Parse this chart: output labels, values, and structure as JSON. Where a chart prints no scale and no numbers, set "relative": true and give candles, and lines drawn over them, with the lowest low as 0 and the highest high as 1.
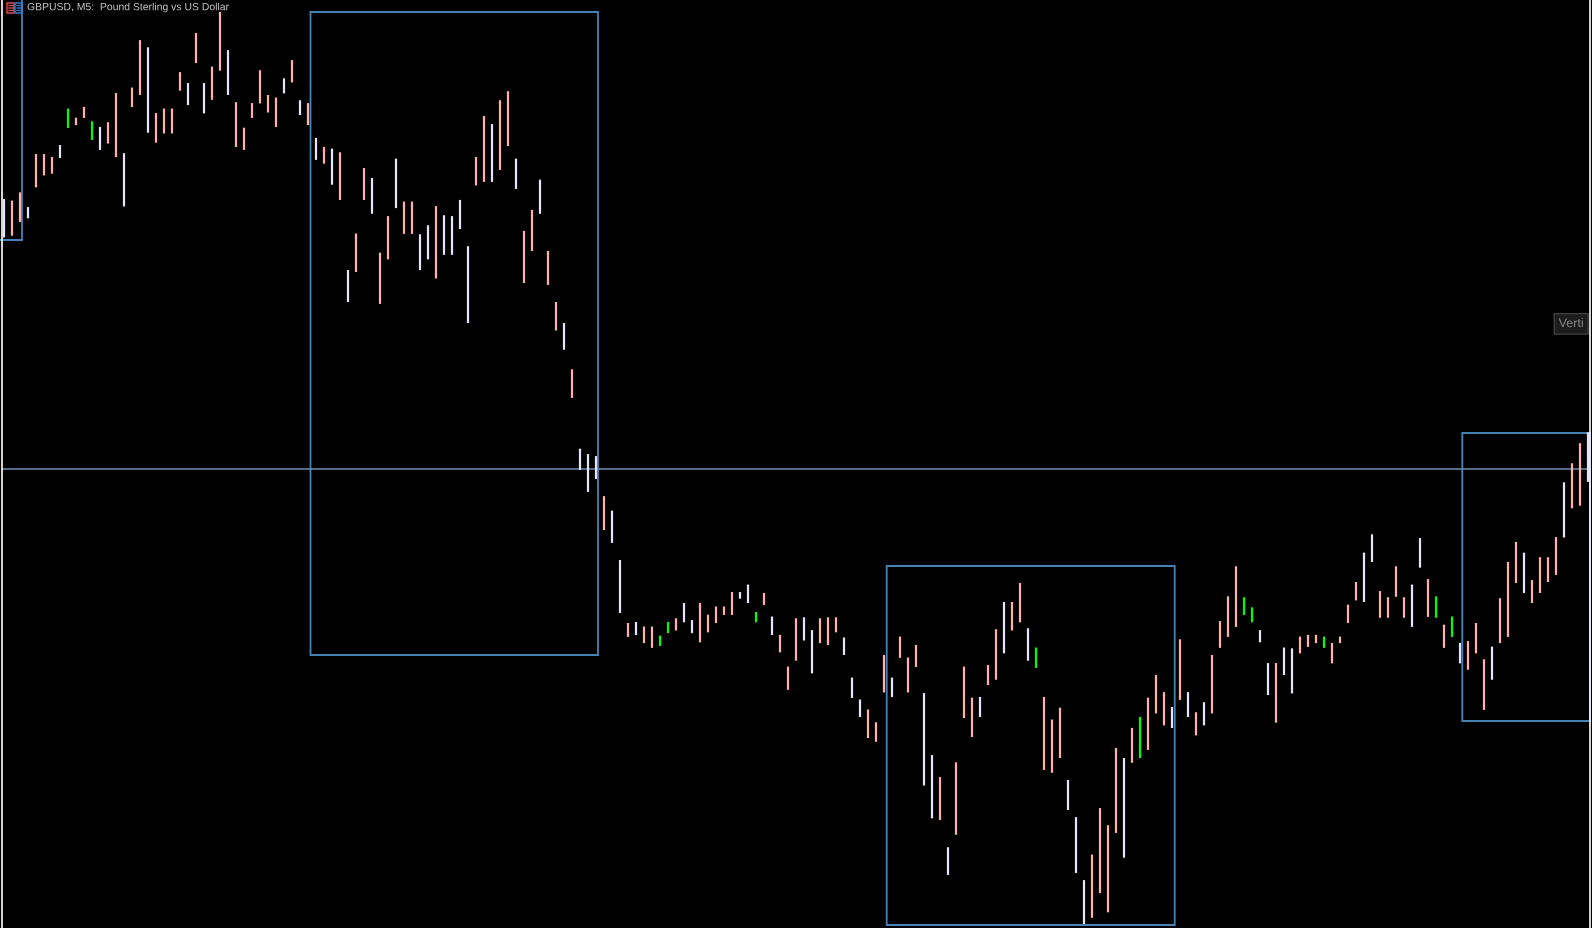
{
  "chart_data": {
    "type": "candlestick",
    "title": "GBPUSD, M5:  Pound Sterling vs US Dollar",
    "relative": true,
    "categories": [
      null,
      null,
      null,
      null,
      null,
      null,
      null,
      null,
      null,
      null,
      null,
      null,
      null,
      null,
      null,
      null,
      null,
      null,
      null,
      null,
      null,
      null,
      null,
      null,
      null,
      null,
      null,
      null,
      null,
      null,
      null,
      null,
      null,
      null,
      null,
      null,
      null,
      null,
      null,
      null,
      null,
      null,
      null,
      null,
      null,
      null,
      null,
      null,
      null,
      null,
      null,
      null,
      null,
      null,
      null,
      null,
      null,
      null,
      null,
      null,
      null,
      null,
      null,
      null,
      null,
      null,
      null,
      null,
      null,
      null,
      null,
      null,
      null,
      null,
      null,
      null,
      null,
      null,
      null,
      null,
      null,
      null,
      null,
      null,
      null,
      null,
      null,
      null,
      null,
      null,
      null,
      null,
      null,
      null,
      null,
      null,
      null,
      null,
      null,
      null,
      null,
      null,
      null,
      null,
      null,
      null,
      null,
      null,
      null,
      null,
      null,
      null,
      null,
      null,
      null,
      null,
      null,
      null,
      null,
      null,
      null,
      null,
      null,
      null,
      null,
      null,
      null,
      null,
      null,
      null,
      null,
      null,
      null,
      null,
      null,
      null,
      null,
      null,
      null,
      null,
      null,
      null,
      null,
      null,
      null,
      null,
      null,
      null,
      null,
      null,
      null,
      null,
      null,
      null,
      null,
      null,
      null,
      null,
      null,
      null,
      null,
      null,
      null,
      null,
      null,
      null,
      null,
      null,
      null,
      null,
      null,
      null,
      null,
      null,
      null,
      null,
      null,
      null,
      null,
      null,
      null,
      null,
      null,
      null,
      null,
      null,
      null,
      null,
      null,
      null,
      null,
      null,
      null,
      null,
      null,
      null,
      null,
      null,
      null
    ],
    "ohlc": [
      [
        0.795,
        0.795,
        0.753,
        0.753
      ],
      [
        0.755,
        0.793,
        0.755,
        0.793
      ],
      [
        0.77,
        0.802,
        0.77,
        0.802
      ],
      [
        0.786,
        0.786,
        0.774,
        0.774
      ],
      [
        0.808,
        0.844,
        0.808,
        0.844
      ],
      [
        0.821,
        0.844,
        0.821,
        0.844
      ],
      [
        0.823,
        0.841,
        0.823,
        0.841
      ],
      [
        0.854,
        0.854,
        0.84,
        0.84
      ],
      [
        0.873,
        0.894,
        0.873,
        0.894
      ],
      [
        0.876,
        0.884,
        0.876,
        0.884
      ],
      [
        0.884,
        0.896,
        0.884,
        0.896
      ],
      [
        0.86,
        0.88,
        0.86,
        0.88
      ],
      [
        0.874,
        0.874,
        0.849,
        0.849
      ],
      [
        0.856,
        0.879,
        0.856,
        0.879
      ],
      [
        0.841,
        0.911,
        0.841,
        0.911
      ],
      [
        0.845,
        0.845,
        0.787,
        0.787
      ],
      [
        0.896,
        0.917,
        0.896,
        0.917
      ],
      [
        0.909,
        0.969,
        0.909,
        0.969
      ],
      [
        0.961,
        0.961,
        0.868,
        0.868
      ],
      [
        0.857,
        0.889,
        0.857,
        0.889
      ],
      [
        0.867,
        0.894,
        0.867,
        0.894
      ],
      [
        0.867,
        0.894,
        0.867,
        0.894
      ],
      [
        0.914,
        0.934,
        0.914,
        0.934
      ],
      [
        0.922,
        0.922,
        0.898,
        0.898
      ],
      [
        0.944,
        0.977,
        0.944,
        0.977
      ],
      [
        0.922,
        0.922,
        0.889,
        0.889
      ],
      [
        0.904,
        0.94,
        0.904,
        0.94
      ],
      [
        0.936,
        1,
        0.936,
        1
      ],
      [
        0.958,
        0.958,
        0.909,
        0.909
      ],
      [
        0.852,
        0.901,
        0.852,
        0.901
      ],
      [
        0.849,
        0.873,
        0.849,
        0.873
      ],
      [
        0.884,
        0.9,
        0.884,
        0.9
      ],
      [
        0.9,
        0.936,
        0.9,
        0.936
      ],
      [
        0.89,
        0.909,
        0.89,
        0.909
      ],
      [
        0.874,
        0.906,
        0.874,
        0.906
      ],
      [
        0.927,
        0.927,
        0.911,
        0.911
      ],
      [
        0.923,
        0.947,
        0.923,
        0.947
      ],
      [
        0.903,
        0.903,
        0.887,
        0.887
      ],
      [
        0.876,
        0.9,
        0.876,
        0.9
      ],
      [
        0.862,
        0.862,
        0.838,
        0.838
      ],
      [
        0.834,
        0.852,
        0.834,
        0.852
      ],
      [
        0.85,
        0.85,
        0.811,
        0.811
      ],
      [
        0.794,
        0.846,
        0.794,
        0.846
      ],
      [
        0.717,
        0.717,
        0.682,
        0.682
      ],
      [
        0.715,
        0.757,
        0.715,
        0.757
      ],
      [
        0.794,
        0.829,
        0.794,
        0.829
      ],
      [
        0.818,
        0.818,
        0.779,
        0.779
      ],
      [
        0.68,
        0.736,
        0.68,
        0.736
      ],
      [
        0.729,
        0.776,
        0.729,
        0.776
      ],
      [
        0.839,
        0.839,
        0.785,
        0.785
      ],
      [
        0.757,
        0.792,
        0.757,
        0.792
      ],
      [
        0.757,
        0.792,
        0.757,
        0.792
      ],
      [
        0.756,
        0.756,
        0.717,
        0.717
      ],
      [
        0.766,
        0.766,
        0.729,
        0.729
      ],
      [
        0.708,
        0.787,
        0.708,
        0.787
      ],
      [
        0.777,
        0.777,
        0.734,
        0.734
      ],
      [
        0.776,
        0.776,
        0.734,
        0.734
      ],
      [
        0.794,
        0.794,
        0.762,
        0.762
      ],
      [
        0.743,
        0.743,
        0.659,
        0.659
      ],
      [
        0.81,
        0.841,
        0.81,
        0.841
      ],
      [
        0.814,
        0.886,
        0.814,
        0.886
      ],
      [
        0.877,
        0.877,
        0.814,
        0.814
      ],
      [
        0.827,
        0.903,
        0.827,
        0.903
      ],
      [
        0.853,
        0.913,
        0.853,
        0.913
      ],
      [
        0.839,
        0.839,
        0.806,
        0.806
      ],
      [
        0.703,
        0.76,
        0.703,
        0.76
      ],
      [
        0.738,
        0.783,
        0.738,
        0.783
      ],
      [
        0.816,
        0.816,
        0.779,
        0.779
      ],
      [
        0.701,
        0.738,
        0.701,
        0.738
      ],
      [
        0.651,
        0.682,
        0.651,
        0.682
      ],
      [
        0.659,
        0.659,
        0.63,
        0.63
      ],
      [
        0.577,
        0.608,
        0.577,
        0.608
      ],
      [
        0.521,
        0.521,
        0.498,
        0.498
      ],
      [
        0.515,
        0.515,
        0.474,
        0.474
      ],
      [
        0.513,
        0.513,
        0.488,
        0.488
      ],
      [
        0.432,
        0.469,
        0.432,
        0.469
      ],
      [
        0.453,
        0.453,
        0.418,
        0.418
      ],
      [
        0.399,
        0.399,
        0.341,
        0.341
      ],
      [
        0.315,
        0.33,
        0.315,
        0.33
      ],
      [
        0.331,
        0.331,
        0.317,
        0.317
      ],
      [
        0.308,
        0.326,
        0.308,
        0.326
      ],
      [
        0.303,
        0.326,
        0.303,
        0.326
      ],
      [
        0.305,
        0.316,
        0.305,
        0.316
      ],
      [
        0.319,
        0.331,
        0.319,
        0.331
      ],
      [
        0.322,
        0.335,
        0.322,
        0.335
      ],
      [
        0.352,
        0.352,
        0.331,
        0.331
      ],
      [
        0.333,
        0.333,
        0.319,
        0.319
      ],
      [
        0.309,
        0.352,
        0.309,
        0.352
      ],
      [
        0.32,
        0.339,
        0.32,
        0.339
      ],
      [
        0.33,
        0.348,
        0.33,
        0.348
      ],
      [
        0.339,
        0.348,
        0.339,
        0.348
      ],
      [
        0.339,
        0.364,
        0.339,
        0.364
      ],
      [
        0.364,
        0.364,
        0.357,
        0.357
      ],
      [
        0.372,
        0.372,
        0.352,
        0.352
      ],
      [
        0.331,
        0.342,
        0.331,
        0.342
      ],
      [
        0.35,
        0.363,
        0.35,
        0.363
      ],
      [
        0.337,
        0.337,
        0.317,
        0.317
      ],
      [
        0.298,
        0.317,
        0.298,
        0.317
      ],
      [
        0.257,
        0.282,
        0.257,
        0.282
      ],
      [
        0.289,
        0.335,
        0.289,
        0.335
      ],
      [
        0.336,
        0.336,
        0.311,
        0.311
      ],
      [
        0.322,
        0.322,
        0.275,
        0.275
      ],
      [
        0.308,
        0.335,
        0.308,
        0.335
      ],
      [
        0.306,
        0.336,
        0.306,
        0.336
      ],
      [
        0.32,
        0.336,
        0.32,
        0.336
      ],
      [
        0.314,
        0.314,
        0.295,
        0.295
      ],
      [
        0.27,
        0.27,
        0.248,
        0.248
      ],
      [
        0.246,
        0.246,
        0.227,
        0.227
      ],
      [
        0.204,
        0.235,
        0.204,
        0.235
      ],
      [
        0.2,
        0.221,
        0.2,
        0.221
      ],
      [
        0.254,
        0.295,
        0.254,
        0.295
      ],
      [
        0.27,
        0.27,
        0.249,
        0.249
      ],
      [
        0.292,
        0.315,
        0.292,
        0.315
      ],
      [
        0.254,
        0.292,
        0.254,
        0.292
      ],
      [
        0.282,
        0.306,
        0.282,
        0.306
      ],
      [
        0.253,
        0.253,
        0.152,
        0.152
      ],
      [
        0.185,
        0.185,
        0.116,
        0.116
      ],
      [
        0.114,
        0.161,
        0.114,
        0.161
      ],
      [
        0.084,
        0.084,
        0.054,
        0.054
      ],
      [
        0.098,
        0.177,
        0.098,
        0.177
      ],
      [
        0.226,
        0.282,
        0.226,
        0.282
      ],
      [
        0.205,
        0.248,
        0.205,
        0.248
      ],
      [
        0.249,
        0.249,
        0.227,
        0.227
      ],
      [
        0.262,
        0.284,
        0.262,
        0.284
      ],
      [
        0.268,
        0.323,
        0.268,
        0.323
      ],
      [
        0.353,
        0.353,
        0.297,
        0.297
      ],
      [
        0.322,
        0.353,
        0.322,
        0.353
      ],
      [
        0.331,
        0.374,
        0.331,
        0.374
      ],
      [
        0.324,
        0.324,
        0.289,
        0.289
      ],
      [
        0.281,
        0.303,
        0.281,
        0.303
      ],
      [
        0.169,
        0.249,
        0.169,
        0.249
      ],
      [
        0.166,
        0.224,
        0.166,
        0.224
      ],
      [
        0.182,
        0.237,
        0.182,
        0.237
      ],
      [
        0.158,
        0.158,
        0.125,
        0.125
      ],
      [
        0.117,
        0.117,
        0.056,
        0.056
      ],
      [
        0.048,
        0.048,
        0,
        0
      ],
      [
        0.007,
        0.076,
        0.007,
        0.076
      ],
      [
        0.034,
        0.127,
        0.034,
        0.127
      ],
      [
        0.013,
        0.108,
        0.013,
        0.108
      ],
      [
        0.1,
        0.193,
        0.1,
        0.193
      ],
      [
        0.182,
        0.182,
        0.073,
        0.073
      ],
      [
        0.177,
        0.215,
        0.177,
        0.215
      ],
      [
        0.182,
        0.227,
        0.182,
        0.227
      ],
      [
        0.191,
        0.248,
        0.191,
        0.248
      ],
      [
        0.231,
        0.273,
        0.231,
        0.273
      ],
      [
        0.218,
        0.254,
        0.218,
        0.254
      ],
      [
        0.238,
        0.238,
        0.215,
        0.215
      ],
      [
        0.246,
        0.312,
        0.246,
        0.312
      ],
      [
        0.254,
        0.254,
        0.227,
        0.227
      ],
      [
        0.207,
        0.232,
        0.207,
        0.232
      ],
      [
        0.243,
        0.243,
        0.218,
        0.218
      ],
      [
        0.231,
        0.295,
        0.231,
        0.295
      ],
      [
        0.303,
        0.332,
        0.303,
        0.332
      ],
      [
        0.315,
        0.359,
        0.315,
        0.359
      ],
      [
        0.326,
        0.392,
        0.326,
        0.392
      ],
      [
        0.339,
        0.358,
        0.339,
        0.358
      ],
      [
        0.331,
        0.347,
        0.331,
        0.347
      ],
      [
        0.322,
        0.322,
        0.309,
        0.309
      ],
      [
        0.286,
        0.286,
        0.251,
        0.251
      ],
      [
        0.221,
        0.286,
        0.221,
        0.286
      ],
      [
        0.303,
        0.303,
        0.273,
        0.273
      ],
      [
        0.302,
        0.302,
        0.253,
        0.253
      ],
      [
        0.297,
        0.315,
        0.297,
        0.315
      ],
      [
        0.304,
        0.317,
        0.304,
        0.317
      ],
      [
        0.308,
        0.317,
        0.308,
        0.317
      ],
      [
        0.303,
        0.315,
        0.303,
        0.315
      ],
      [
        0.286,
        0.308,
        0.286,
        0.308
      ],
      [
        0.308,
        0.315,
        0.308,
        0.315
      ],
      [
        0.33,
        0.35,
        0.33,
        0.35
      ],
      [
        0.355,
        0.375,
        0.355,
        0.375
      ],
      [
        0.407,
        0.407,
        0.353,
        0.353
      ],
      [
        0.427,
        0.427,
        0.397,
        0.397
      ],
      [
        0.336,
        0.365,
        0.336,
        0.365
      ],
      [
        0.336,
        0.358,
        0.336,
        0.358
      ],
      [
        0.359,
        0.392,
        0.359,
        0.392
      ],
      [
        0.336,
        0.358,
        0.336,
        0.358
      ],
      [
        0.372,
        0.372,
        0.326,
        0.326
      ],
      [
        0.423,
        0.423,
        0.391,
        0.391
      ],
      [
        0.337,
        0.378,
        0.337,
        0.378
      ],
      [
        0.336,
        0.359,
        0.336,
        0.359
      ],
      [
        0.303,
        0.328,
        0.303,
        0.328
      ],
      [
        0.315,
        0.337,
        0.315,
        0.337
      ],
      [
        0.308,
        0.308,
        0.286,
        0.286
      ],
      [
        0.279,
        0.31,
        0.279,
        0.31
      ],
      [
        0.297,
        0.33,
        0.297,
        0.33
      ],
      [
        0.235,
        0.29,
        0.235,
        0.29
      ],
      [
        0.304,
        0.304,
        0.268,
        0.268
      ],
      [
        0.308,
        0.357,
        0.308,
        0.357
      ],
      [
        0.315,
        0.397,
        0.315,
        0.397
      ],
      [
        0.374,
        0.419,
        0.374,
        0.419
      ],
      [
        0.407,
        0.407,
        0.363,
        0.363
      ],
      [
        0.352,
        0.377,
        0.352,
        0.377
      ],
      [
        0.363,
        0.402,
        0.363,
        0.402
      ],
      [
        0.375,
        0.402,
        0.375,
        0.402
      ],
      [
        0.383,
        0.424,
        0.383,
        0.424
      ],
      [
        0.484,
        0.484,
        0.424,
        0.424
      ],
      [
        0.456,
        0.505,
        0.456,
        0.505
      ],
      [
        0.459,
        0.527,
        0.459,
        0.527
      ],
      [
        0.539,
        0.539,
        0.485,
        0.485
      ]
    ],
    "colors": [
      "#e4e4f8",
      "#ffb0b0",
      "#ffb0b0",
      "#e4e4f8",
      "#ffb0b0",
      "#ffb0b0",
      "#ffb0b0",
      "#e4e4f8",
      "#00ff00",
      "#ffb0b0",
      "#ffb0b0",
      "#00ff00",
      "#e4e4f8",
      "#ffb0b0",
      "#ffb0b0",
      "#e4e4f8",
      "#ffb0b0",
      "#ffb0b0",
      "#e4e4f8",
      "#ffb0b0",
      "#ffb0b0",
      "#ffb0b0",
      "#ffb0b0",
      "#e4e4f8",
      "#ffb0b0",
      "#e4e4f8",
      "#ffb0b0",
      "#ffb0b0",
      "#e4e4f8",
      "#ffb0b0",
      "#ffb0b0",
      "#ffb0b0",
      "#ffb0b0",
      "#ffb0b0",
      "#ffb0b0",
      "#e4e4f8",
      "#ffb0b0",
      "#e4e4f8",
      "#ffb0b0",
      "#e4e4f8",
      "#ffb0b0",
      "#e4e4f8",
      "#ffb0b0",
      "#e4e4f8",
      "#ffb0b0",
      "#ffb0b0",
      "#e4e4f8",
      "#ffb0b0",
      "#ffb0b0",
      "#e4e4f8",
      "#ffb0b0",
      "#ffb0b0",
      "#e4e4f8",
      "#e4e4f8",
      "#ffb0b0",
      "#e4e4f8",
      "#e4e4f8",
      "#e4e4f8",
      "#e4e4f8",
      "#ffb0b0",
      "#ffb0b0",
      "#e4e4f8",
      "#ffb0b0",
      "#ffb0b0",
      "#e4e4f8",
      "#ffb0b0",
      "#ffb0b0",
      "#e4e4f8",
      "#ffb0b0",
      "#ffb0b0",
      "#e4e4f8",
      "#ffb0b0",
      "#e4e4f8",
      "#e4e4f8",
      "#e4e4f8",
      "#ffb0b0",
      "#e4e4f8",
      "#e4e4f8",
      "#ffb0b0",
      "#e4e4f8",
      "#ffb0b0",
      "#ffb0b0",
      "#00ff00",
      "#00ff00",
      "#ffb0b0",
      "#e4e4f8",
      "#e4e4f8",
      "#ffb0b0",
      "#ffb0b0",
      "#ffb0b0",
      "#ffb0b0",
      "#ffb0b0",
      "#e4e4f8",
      "#e4e4f8",
      "#00ff00",
      "#ffb0b0",
      "#e4e4f8",
      "#ffb0b0",
      "#ffb0b0",
      "#ffb0b0",
      "#e4e4f8",
      "#e4e4f8",
      "#ffb0b0",
      "#ffb0b0",
      "#ffb0b0",
      "#e4e4f8",
      "#e4e4f8",
      "#e4e4f8",
      "#ffb0b0",
      "#ffb0b0",
      "#ffb0b0",
      "#e4e4f8",
      "#ffb0b0",
      "#ffb0b0",
      "#ffb0b0",
      "#e4e4f8",
      "#e4e4f8",
      "#ffb0b0",
      "#e4e4f8",
      "#ffb0b0",
      "#ffb0b0",
      "#ffb0b0",
      "#e4e4f8",
      "#ffb0b0",
      "#ffb0b0",
      "#e4e4f8",
      "#ffb0b0",
      "#ffb0b0",
      "#e4e4f8",
      "#00ff00",
      "#ffb0b0",
      "#ffb0b0",
      "#ffb0b0",
      "#e4e4f8",
      "#e4e4f8",
      "#e4e4f8",
      "#ffb0b0",
      "#ffb0b0",
      "#ffb0b0",
      "#ffb0b0",
      "#e4e4f8",
      "#ffb0b0",
      "#00ff00",
      "#ffb0b0",
      "#ffb0b0",
      "#ffb0b0",
      "#e4e4f8",
      "#ffb0b0",
      "#e4e4f8",
      "#ffb0b0",
      "#e4e4f8",
      "#ffb0b0",
      "#ffb0b0",
      "#ffb0b0",
      "#ffb0b0",
      "#00ff00",
      "#00ff00",
      "#e4e4f8",
      "#e4e4f8",
      "#ffb0b0",
      "#e4e4f8",
      "#e4e4f8",
      "#ffb0b0",
      "#ffb0b0",
      "#ffb0b0",
      "#00ff00",
      "#ffb0b0",
      "#ffb0b0",
      "#ffb0b0",
      "#ffb0b0",
      "#e4e4f8",
      "#e4e4f8",
      "#ffb0b0",
      "#ffb0b0",
      "#ffb0b0",
      "#ffb0b0",
      "#e4e4f8",
      "#e4e4f8",
      "#ffb0b0",
      "#00ff00",
      "#ffb0b0",
      "#00ff00",
      "#e4e4f8",
      "#ffb0b0",
      "#ffb0b0",
      "#ffb0b0",
      "#e4e4f8",
      "#ffb0b0",
      "#ffb0b0",
      "#ffb0b0",
      "#e4e4f8",
      "#ffb0b0",
      "#ffb0b0",
      "#ffb0b0",
      "#ffb0b0",
      "#e4e4f8",
      "#ffb0b0",
      "#ffb0b0",
      "#e4e4f8"
    ],
    "ref_lines": [
      {
        "axis": "y",
        "value": 0.499,
        "color": "#6f8fb0"
      }
    ],
    "annotations": [
      "Verti"
    ]
  }
}
